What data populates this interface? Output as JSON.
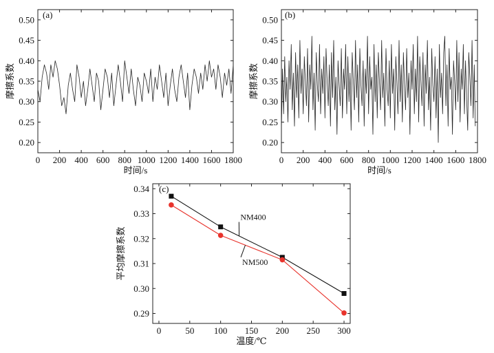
{
  "chart_data": [
    {
      "type": "line",
      "panel_label": "(a)",
      "xlabel": "时间/s",
      "ylabel": "摩擦系数",
      "xlim": [
        0,
        1800
      ],
      "ylim": [
        0.175,
        0.525
      ],
      "xticks": [
        0,
        200,
        400,
        600,
        800,
        1000,
        1200,
        1400,
        1600,
        1800
      ],
      "yticks": [
        0.2,
        0.25,
        0.3,
        0.35,
        0.4,
        0.45,
        0.5
      ],
      "ytick_labels": [
        "0.20",
        "0.25",
        "0.30",
        "0.35",
        "0.40",
        "0.45",
        "0.50"
      ],
      "series": [
        {
          "color": "#222222",
          "x": [
            0,
            20,
            40,
            60,
            80,
            100,
            120,
            140,
            160,
            180,
            200,
            220,
            240,
            260,
            280,
            300,
            320,
            340,
            360,
            380,
            400,
            420,
            440,
            460,
            480,
            500,
            520,
            540,
            560,
            580,
            600,
            620,
            640,
            660,
            680,
            700,
            720,
            740,
            760,
            780,
            800,
            820,
            840,
            860,
            880,
            900,
            920,
            940,
            960,
            980,
            1000,
            1020,
            1040,
            1060,
            1080,
            1100,
            1120,
            1140,
            1160,
            1180,
            1200,
            1220,
            1240,
            1260,
            1280,
            1300,
            1320,
            1340,
            1360,
            1380,
            1400,
            1420,
            1440,
            1460,
            1480,
            1500,
            1520,
            1540,
            1560,
            1580,
            1600,
            1620,
            1640,
            1660,
            1680,
            1700,
            1720,
            1740,
            1760,
            1780,
            1800
          ],
          "y": [
            0.33,
            0.3,
            0.36,
            0.39,
            0.37,
            0.33,
            0.39,
            0.36,
            0.4,
            0.38,
            0.34,
            0.29,
            0.31,
            0.27,
            0.34,
            0.37,
            0.33,
            0.3,
            0.39,
            0.36,
            0.31,
            0.35,
            0.29,
            0.33,
            0.38,
            0.34,
            0.3,
            0.37,
            0.35,
            0.28,
            0.33,
            0.38,
            0.36,
            0.31,
            0.37,
            0.29,
            0.34,
            0.39,
            0.35,
            0.3,
            0.4,
            0.36,
            0.32,
            0.38,
            0.33,
            0.29,
            0.36,
            0.34,
            0.3,
            0.37,
            0.35,
            0.32,
            0.38,
            0.3,
            0.36,
            0.33,
            0.39,
            0.35,
            0.31,
            0.37,
            0.29,
            0.34,
            0.38,
            0.33,
            0.3,
            0.36,
            0.39,
            0.35,
            0.31,
            0.37,
            0.28,
            0.34,
            0.38,
            0.36,
            0.32,
            0.37,
            0.33,
            0.39,
            0.35,
            0.4,
            0.36,
            0.38,
            0.33,
            0.39,
            0.36,
            0.31,
            0.37,
            0.34,
            0.38,
            0.32,
            0.39
          ]
        }
      ]
    },
    {
      "type": "line",
      "panel_label": "(b)",
      "xlabel": "时间/s",
      "ylabel": "摩擦系数",
      "xlim": [
        0,
        1800
      ],
      "ylim": [
        0.175,
        0.525
      ],
      "xticks": [
        0,
        200,
        400,
        600,
        800,
        1000,
        1200,
        1400,
        1600,
        1800
      ],
      "yticks": [
        0.2,
        0.25,
        0.3,
        0.35,
        0.4,
        0.45,
        0.5
      ],
      "ytick_labels": [
        "0.20",
        "0.25",
        "0.30",
        "0.35",
        "0.40",
        "0.45",
        "0.50"
      ],
      "series": [
        {
          "color": "#222222",
          "x": [
            0,
            10,
            20,
            30,
            40,
            50,
            60,
            70,
            80,
            90,
            100,
            110,
            120,
            130,
            140,
            150,
            160,
            170,
            180,
            190,
            200,
            210,
            220,
            230,
            240,
            250,
            260,
            270,
            280,
            290,
            300,
            310,
            320,
            330,
            340,
            350,
            360,
            370,
            380,
            390,
            400,
            410,
            420,
            430,
            440,
            450,
            460,
            470,
            480,
            490,
            500,
            510,
            520,
            530,
            540,
            550,
            560,
            570,
            580,
            590,
            600,
            610,
            620,
            630,
            640,
            650,
            660,
            670,
            680,
            690,
            700,
            710,
            720,
            730,
            740,
            750,
            760,
            770,
            780,
            790,
            800,
            810,
            820,
            830,
            840,
            850,
            860,
            870,
            880,
            890,
            900,
            910,
            920,
            930,
            940,
            950,
            960,
            970,
            980,
            990,
            1000,
            1010,
            1020,
            1030,
            1040,
            1050,
            1060,
            1070,
            1080,
            1090,
            1100,
            1110,
            1120,
            1130,
            1140,
            1150,
            1160,
            1170,
            1180,
            1190,
            1200,
            1210,
            1220,
            1230,
            1240,
            1250,
            1260,
            1270,
            1280,
            1290,
            1300,
            1310,
            1320,
            1330,
            1340,
            1350,
            1360,
            1370,
            1380,
            1390,
            1400,
            1410,
            1420,
            1430,
            1440,
            1450,
            1460,
            1470,
            1480,
            1490,
            1500,
            1510,
            1520,
            1530,
            1540,
            1550,
            1560,
            1570,
            1580,
            1590,
            1600,
            1610,
            1620,
            1630,
            1640,
            1650,
            1660,
            1670,
            1680,
            1690,
            1700,
            1710,
            1720,
            1730,
            1740,
            1750,
            1760,
            1770,
            1780
          ],
          "y": [
            0.23,
            0.38,
            0.27,
            0.41,
            0.3,
            0.36,
            0.25,
            0.4,
            0.33,
            0.44,
            0.28,
            0.37,
            0.24,
            0.42,
            0.31,
            0.39,
            0.26,
            0.45,
            0.32,
            0.38,
            0.27,
            0.41,
            0.35,
            0.29,
            0.43,
            0.25,
            0.39,
            0.33,
            0.46,
            0.28,
            0.37,
            0.23,
            0.42,
            0.34,
            0.3,
            0.44,
            0.27,
            0.38,
            0.32,
            0.41,
            0.26,
            0.43,
            0.35,
            0.29,
            0.39,
            0.24,
            0.42,
            0.31,
            0.45,
            0.28,
            0.36,
            0.22,
            0.4,
            0.34,
            0.29,
            0.43,
            0.26,
            0.38,
            0.33,
            0.44,
            0.27,
            0.41,
            0.3,
            0.37,
            0.23,
            0.42,
            0.35,
            0.28,
            0.45,
            0.31,
            0.39,
            0.25,
            0.43,
            0.34,
            0.29,
            0.4,
            0.24,
            0.38,
            0.32,
            0.46,
            0.27,
            0.41,
            0.33,
            0.36,
            0.22,
            0.44,
            0.3,
            0.39,
            0.26,
            0.42,
            0.35,
            0.28,
            0.45,
            0.31,
            0.37,
            0.24,
            0.43,
            0.33,
            0.29,
            0.4,
            0.26,
            0.44,
            0.32,
            0.38,
            0.23,
            0.41,
            0.35,
            0.27,
            0.45,
            0.3,
            0.39,
            0.25,
            0.42,
            0.34,
            0.28,
            0.43,
            0.31,
            0.37,
            0.22,
            0.4,
            0.33,
            0.44,
            0.27,
            0.38,
            0.3,
            0.46,
            0.25,
            0.41,
            0.35,
            0.29,
            0.42,
            0.24,
            0.39,
            0.32,
            0.45,
            0.28,
            0.36,
            0.23,
            0.43,
            0.34,
            0.3,
            0.41,
            0.26,
            0.38,
            0.2,
            0.44,
            0.31,
            0.37,
            0.27,
            0.42,
            0.46,
            0.29,
            0.39,
            0.24,
            0.43,
            0.33,
            0.36,
            0.22,
            0.4,
            0.35,
            0.28,
            0.45,
            0.3,
            0.42,
            0.25,
            0.38,
            0.33,
            0.44,
            0.27,
            0.4,
            0.31,
            0.23,
            0.42,
            0.36,
            0.29,
            0.45,
            0.26,
            0.39,
            0.24
          ]
        }
      ]
    },
    {
      "type": "line",
      "panel_label": "(c)",
      "xlabel": "温度/℃",
      "ylabel": "平均摩擦系数",
      "xlim": [
        -10,
        310
      ],
      "ylim": [
        0.286,
        0.342
      ],
      "xticks": [
        0,
        50,
        100,
        150,
        200,
        250,
        300
      ],
      "yticks": [
        0.29,
        0.3,
        0.31,
        0.32,
        0.33,
        0.34
      ],
      "ytick_labels": [
        "0.29",
        "0.30",
        "0.31",
        "0.32",
        "0.33",
        "0.34"
      ],
      "series": [
        {
          "name": "NM400",
          "marker": "square",
          "color": "#111111",
          "x": [
            20,
            100,
            200,
            300
          ],
          "y": [
            0.337,
            0.3247,
            0.3125,
            0.298
          ]
        },
        {
          "name": "NM500",
          "marker": "circle",
          "color": "#e8332c",
          "x": [
            20,
            100,
            200,
            300
          ],
          "y": [
            0.3335,
            0.3213,
            0.3115,
            0.2902
          ]
        }
      ],
      "annotations": [
        {
          "text": "NM400",
          "x": 132,
          "y": 0.3275,
          "target_series": 0,
          "target_x": 130
        },
        {
          "text": "NM500",
          "x": 135,
          "y": 0.3095,
          "target_series": 1,
          "target_x": 140
        }
      ]
    }
  ]
}
